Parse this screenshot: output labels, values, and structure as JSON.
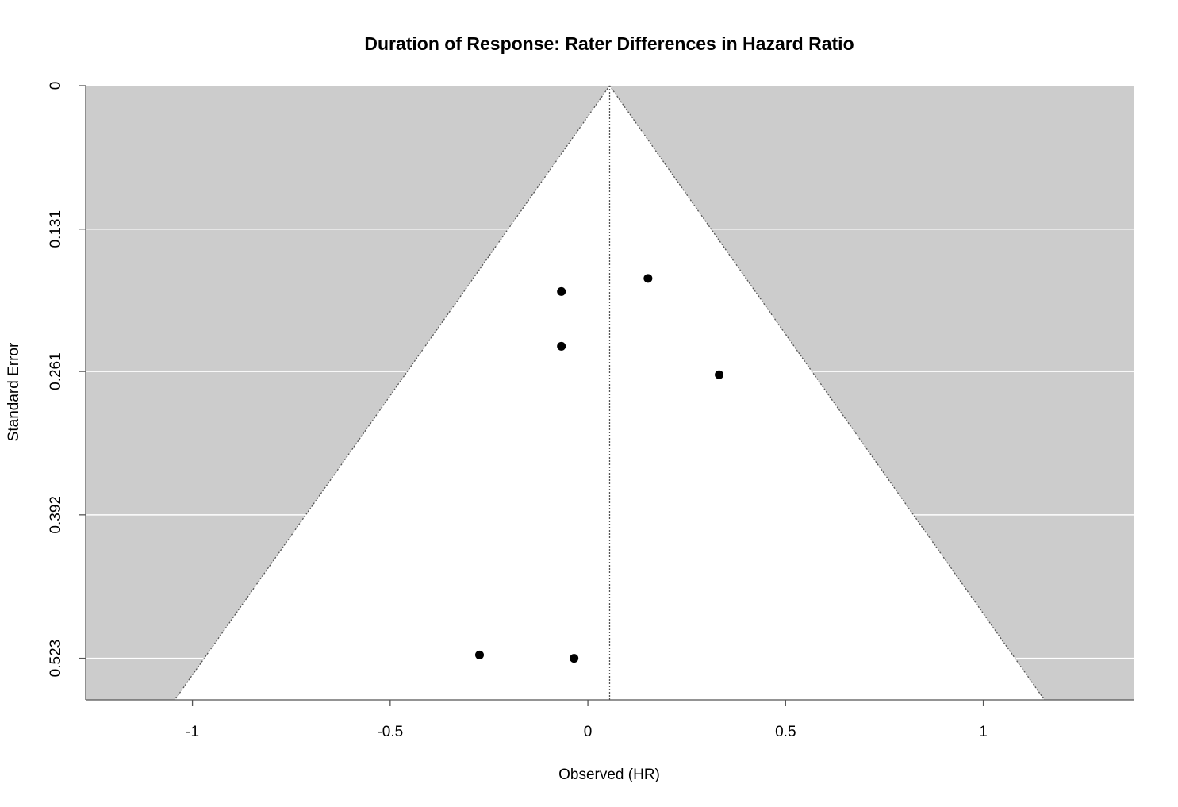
{
  "chart_data": {
    "type": "scatter",
    "subtype": "funnel",
    "title": "Duration of Response: Rater Differences in Hazard Ratio",
    "xlabel": "Observed (HR)",
    "ylabel": "Standard Error",
    "xlim": [
      -1.27,
      1.38
    ],
    "ylim": [
      0.561,
      0
    ],
    "y_axis_reversed": true,
    "x_ticks": [
      -1,
      -0.5,
      0,
      0.5,
      1
    ],
    "x_tick_labels": [
      "-1",
      "-0.5",
      "0",
      "0.5",
      "1"
    ],
    "y_ticks": [
      0,
      0.131,
      0.261,
      0.392,
      0.523
    ],
    "y_tick_labels": [
      "0",
      "0.131",
      "0.261",
      "0.392",
      "0.523"
    ],
    "horizontal_grid": true,
    "center_estimate": 0.055,
    "funnel_z": 1.96,
    "colors": {
      "outside_region": "#cccccc",
      "inside_region": "#ffffff",
      "gridline": "#ffffff",
      "points": "#000000",
      "funnel_lines": "#555555"
    },
    "series": [
      {
        "points": [
          {
            "x": 0.152,
            "y": 0.176
          },
          {
            "x": -0.067,
            "y": 0.188
          },
          {
            "x": -0.067,
            "y": 0.238
          },
          {
            "x": 0.332,
            "y": 0.264
          },
          {
            "x": -0.274,
            "y": 0.52
          },
          {
            "x": -0.035,
            "y": 0.523
          }
        ]
      }
    ]
  }
}
